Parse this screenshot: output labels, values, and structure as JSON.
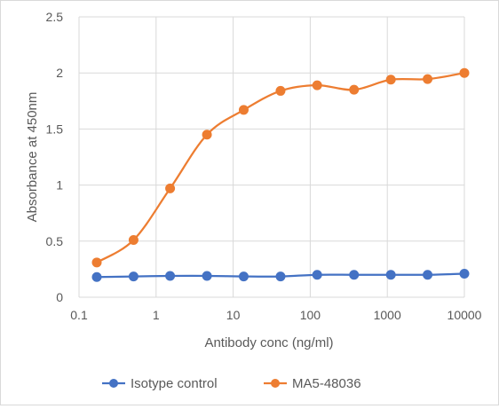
{
  "chart_data": {
    "type": "line",
    "xlabel": "Antibody conc (ng/ml)",
    "ylabel": "Absorbance at 450nm",
    "x_scale": "log",
    "xlim": [
      0.1,
      10000
    ],
    "ylim": [
      0,
      2.5
    ],
    "x_ticks": [
      "0.1",
      "1",
      "10",
      "100",
      "1000",
      "10000"
    ],
    "y_ticks": [
      "0",
      "0.5",
      "1",
      "1.5",
      "2",
      "2.5"
    ],
    "grid": "on",
    "legend_position": "bottom",
    "x": [
      0.17,
      0.51,
      1.52,
      4.57,
      13.7,
      41.2,
      123,
      370,
      1111,
      3333,
      10000
    ],
    "series": [
      {
        "name": "Isotype control",
        "color": "#4472C4",
        "values": [
          0.18,
          0.185,
          0.19,
          0.19,
          0.185,
          0.185,
          0.2,
          0.2,
          0.2,
          0.2,
          0.21
        ]
      },
      {
        "name": "MA5-48036",
        "color": "#ED7D31",
        "values": [
          0.31,
          0.51,
          0.97,
          1.45,
          1.67,
          1.84,
          1.89,
          1.85,
          1.94,
          1.945,
          2.0
        ]
      }
    ]
  }
}
